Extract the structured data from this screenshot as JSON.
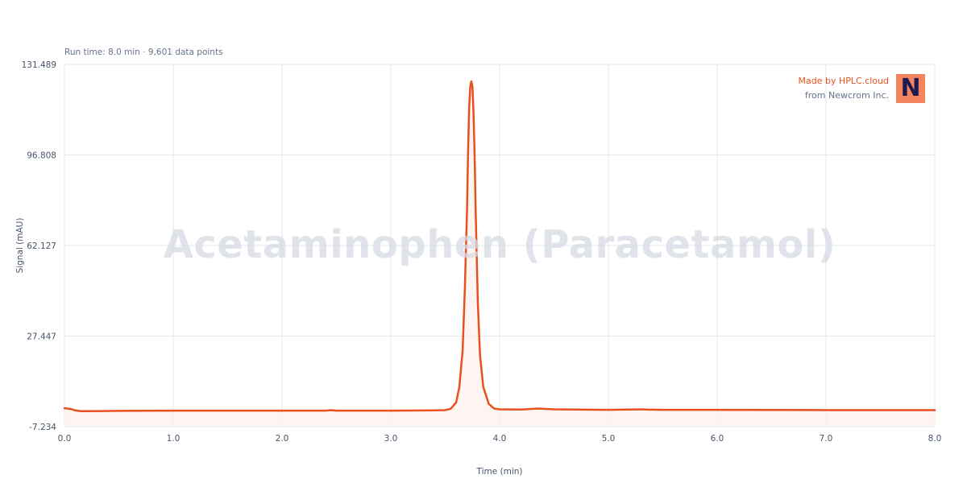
{
  "subtitle": "Run time: 8.0 min · 9,601 data points",
  "watermark": "Acetaminophen (Paracetamol)",
  "branding": {
    "made_by": "Made by HPLC.cloud",
    "from": "from Newcrom Inc.",
    "logo_letter": "N"
  },
  "colors": {
    "trace": "#e8501e",
    "fill": "#fdf1ec",
    "grid": "#e5e7eb",
    "axis_text": "#475569",
    "logo_bg": "#f4845f"
  },
  "chart_data": {
    "type": "line",
    "xlabel": "Time (min)",
    "ylabel": "Signal (mAU)",
    "xlim": [
      0.0,
      8.0
    ],
    "ylim": [
      -7.234,
      131.489
    ],
    "x_ticks": [
      "0.0",
      "1.0",
      "2.0",
      "3.0",
      "4.0",
      "5.0",
      "6.0",
      "7.0",
      "8.0"
    ],
    "y_ticks": [
      "131.489",
      "96.808",
      "62.127",
      "27.447",
      "-7.234"
    ],
    "grid": true,
    "series": [
      {
        "x": [
          0.0,
          0.05,
          0.1,
          0.15,
          0.2,
          0.5,
          1.0,
          1.5,
          2.0,
          2.4,
          2.45,
          2.5,
          3.0,
          3.4,
          3.5,
          3.55,
          3.6,
          3.63,
          3.66,
          3.68,
          3.7,
          3.71,
          3.72,
          3.73,
          3.74,
          3.75,
          3.76,
          3.77,
          3.78,
          3.8,
          3.82,
          3.85,
          3.9,
          3.95,
          4.0,
          4.2,
          4.35,
          4.5,
          5.0,
          5.3,
          5.35,
          5.5,
          6.0,
          7.0,
          8.0
        ],
        "y": [
          -0.2,
          -0.4,
          -1.0,
          -1.3,
          -1.3,
          -1.2,
          -1.1,
          -1.1,
          -1.1,
          -1.1,
          -0.9,
          -1.1,
          -1.1,
          -1.0,
          -0.9,
          -0.4,
          2.0,
          8.0,
          22.0,
          45.0,
          75.0,
          98.0,
          115.0,
          123.0,
          125.0,
          123.0,
          113.0,
          97.0,
          75.0,
          40.0,
          20.0,
          8.0,
          1.5,
          -0.3,
          -0.6,
          -0.7,
          -0.3,
          -0.6,
          -0.8,
          -0.6,
          -0.7,
          -0.8,
          -0.8,
          -0.9,
          -0.9
        ]
      }
    ]
  }
}
